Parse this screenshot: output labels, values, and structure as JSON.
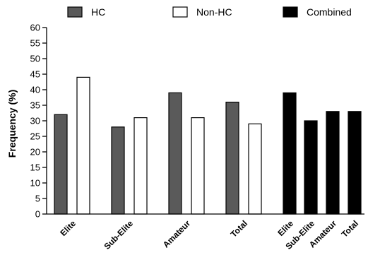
{
  "chart_data": {
    "type": "bar",
    "ylabel": "Frequency (%)",
    "xlabel": "",
    "ylim": [
      0,
      60
    ],
    "y_ticks": [
      0,
      5,
      10,
      15,
      20,
      25,
      30,
      35,
      40,
      45,
      50,
      55,
      60
    ],
    "grid": false,
    "legend_position": "top",
    "legend": [
      {
        "name": "HC",
        "color": "#5a5a5a"
      },
      {
        "name": "Non-HC",
        "color": "#ffffff"
      },
      {
        "name": "Combined",
        "color": "#000000"
      }
    ],
    "groups": [
      {
        "category": "Elite",
        "bars": [
          {
            "series": "HC",
            "value": 32
          },
          {
            "series": "Non-HC",
            "value": 44
          }
        ]
      },
      {
        "category": "Sub-Elite",
        "bars": [
          {
            "series": "HC",
            "value": 28
          },
          {
            "series": "Non-HC",
            "value": 31
          }
        ]
      },
      {
        "category": "Amateur",
        "bars": [
          {
            "series": "HC",
            "value": 39
          },
          {
            "series": "Non-HC",
            "value": 31
          }
        ]
      },
      {
        "category": "Total",
        "bars": [
          {
            "series": "HC",
            "value": 36
          },
          {
            "series": "Non-HC",
            "value": 29
          }
        ]
      }
    ],
    "combined": {
      "series": "Combined",
      "categories": [
        "Elite",
        "Sub-Elite",
        "Amateur",
        "Total"
      ],
      "values": [
        39,
        30,
        33,
        33
      ]
    }
  }
}
